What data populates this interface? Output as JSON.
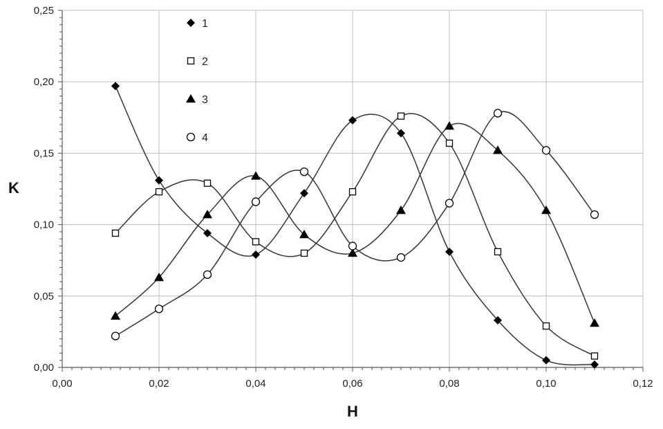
{
  "chart_data": {
    "type": "scatter",
    "title": "",
    "xlabel": "H",
    "ylabel": "K",
    "xlim": [
      0,
      0.12
    ],
    "ylim": [
      0,
      0.25
    ],
    "x_ticks": [
      "0,00",
      "0,02",
      "0,04",
      "0,06",
      "0,08",
      "0,10",
      "0,12"
    ],
    "y_ticks": [
      "0,00",
      "0,05",
      "0,10",
      "0,15",
      "0,20",
      "0,25"
    ],
    "grid": true,
    "legend_position": "top-left",
    "colors": {
      "marker": "#000000",
      "curve": "#333333",
      "grid": "#bdbdbd",
      "axis": "#555555"
    },
    "x": [
      0.011,
      0.02,
      0.03,
      0.04,
      0.05,
      0.06,
      0.07,
      0.08,
      0.09,
      0.1,
      0.11
    ],
    "series": [
      {
        "name": "1",
        "marker": "filled-diamond",
        "values": [
          0.197,
          0.131,
          0.094,
          0.079,
          0.122,
          0.173,
          0.164,
          0.081,
          0.033,
          0.005,
          0.002
        ]
      },
      {
        "name": "2",
        "marker": "open-square",
        "values": [
          0.094,
          0.123,
          0.129,
          0.088,
          0.08,
          0.123,
          0.176,
          0.157,
          0.081,
          0.029,
          0.008
        ]
      },
      {
        "name": "3",
        "marker": "filled-triangle",
        "values": [
          0.036,
          0.063,
          0.107,
          0.134,
          0.093,
          0.08,
          0.11,
          0.169,
          0.152,
          0.11,
          0.031
        ]
      },
      {
        "name": "4",
        "marker": "open-circle",
        "values": [
          0.022,
          0.041,
          0.065,
          0.116,
          0.137,
          0.085,
          0.077,
          0.115,
          0.178,
          0.152,
          0.107
        ]
      }
    ]
  }
}
